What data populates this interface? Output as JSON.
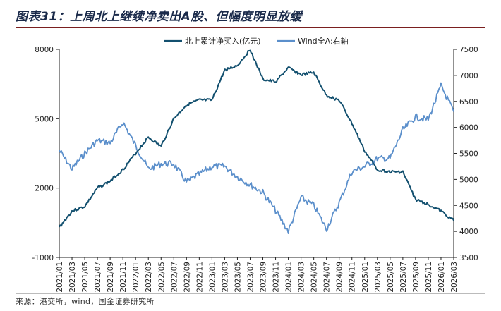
{
  "figure": {
    "title": "图表31：上周北上继续净卖出A股、但幅度明显放缓",
    "source": "来源：港交所，wind，国金证券研究所"
  },
  "colors": {
    "north": "#13506f",
    "wind": "#5b8fcb",
    "axis": "#222222"
  },
  "chart_data": {
    "type": "line",
    "x": [
      "2021/01",
      "2021/03",
      "2021/05",
      "2021/07",
      "2021/09",
      "2021/11",
      "2022/01",
      "2022/03",
      "2022/05",
      "2022/07",
      "2022/09",
      "2022/11",
      "2023/01",
      "2023/03",
      "2023/05",
      "2023/07",
      "2023/09",
      "2023/11",
      "2024/01",
      "2024/03",
      "2024/05",
      "2024/07",
      "2024/09",
      "2024/11",
      "2025/01",
      "2025/03",
      "2025/05",
      "2025/07",
      "2025/09",
      "2025/11",
      "2026/01",
      "2026/03"
    ],
    "y_left": {
      "min": -1000,
      "max": 8000,
      "ticks": [
        -1000,
        2000,
        5000,
        8000
      ]
    },
    "y_right": {
      "min": 3500,
      "max": 7500,
      "ticks": [
        3500,
        4000,
        4500,
        5000,
        5500,
        6000,
        6500,
        7000,
        7500
      ]
    },
    "grid": false,
    "legend_position": "top-center",
    "series": [
      {
        "name": "北上累计净买入(亿元)",
        "axis": "left",
        "values": [
          300,
          1000,
          1200,
          2000,
          2300,
          2800,
          3500,
          4200,
          3800,
          5000,
          5600,
          5800,
          5800,
          7100,
          7300,
          8000,
          6700,
          6600,
          7200,
          6900,
          7000,
          6000,
          5800,
          4800,
          3600,
          2800,
          2700,
          2700,
          1500,
          1300,
          1000,
          600
        ]
      },
      {
        "name": "Wind全A:右轴",
        "axis": "right",
        "values": [
          5560,
          5200,
          5500,
          5750,
          5700,
          6100,
          5650,
          5200,
          5300,
          5300,
          4950,
          5100,
          5250,
          5250,
          5050,
          4900,
          4750,
          4400,
          4000,
          4650,
          4500,
          4050,
          4550,
          5150,
          5250,
          5400,
          5400,
          5950,
          6200,
          6150,
          6800,
          6300
        ]
      }
    ]
  }
}
